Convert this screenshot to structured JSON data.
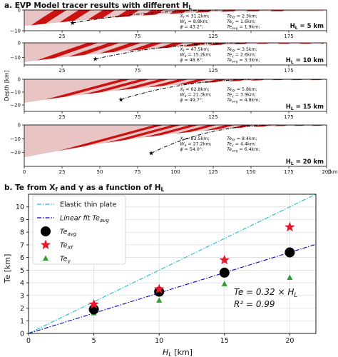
{
  "panel_a": {
    "title_prefix": "a. EVP Model tracer results with different H",
    "title_sub": "L",
    "ylabel": "Depth [km]",
    "colors": {
      "dark": "#cc1111",
      "light": "#e8c4c4",
      "tracer": "#000000"
    },
    "xlim": [
      0,
      200
    ],
    "x_ticks": [
      "0",
      "25",
      "50",
      "75",
      "100",
      "125",
      "150",
      "175",
      "200"
    ],
    "x_unit": "[km]"
  },
  "panel_b": {
    "title_prefix": "b. Te from X",
    "title_mid1": "f",
    "title_mid2": " and γ as a function of H",
    "title_sub": "L",
    "xlabel_main": "H",
    "xlabel_sub": "L",
    "xlabel_unit": " [km]",
    "ylabel": "Te [km]",
    "annotation_line1": "Te = 0.32 × H",
    "annotation_line1_sub": "L",
    "annotation_line2": "R² = 0.99"
  },
  "chart_data": [
    {
      "type": "area",
      "panel": "a",
      "label": "H_L = 5 km",
      "hl": 5,
      "depth_max": 10,
      "y_ticks": [
        "0",
        "−10"
      ],
      "trench_x": 32,
      "front_x": 140,
      "stats_left": [
        [
          "X",
          "f",
          " = 31.2km;"
        ],
        [
          "W",
          "b",
          " = 8.8km;"
        ],
        [
          "ϕ",
          "",
          " = 43.2°;"
        ]
      ],
      "stats_right": [
        [
          "Te",
          "Xf",
          " = 2.3km;"
        ],
        [
          "Te",
          "γ",
          " = 1.6km;"
        ],
        [
          "Te",
          "avg",
          " = 1.9km;"
        ]
      ]
    },
    {
      "type": "area",
      "panel": "a",
      "label": "H_L = 10 km",
      "hl": 10,
      "depth_max": 15,
      "y_ticks": [
        "0",
        "−10"
      ],
      "trench_x": 47,
      "front_x": 150,
      "stats_left": [
        [
          "X",
          "f",
          " = 47.5km;"
        ],
        [
          "W",
          "b",
          " = 15.2km;"
        ],
        [
          "ϕ",
          "",
          " = 48.6°;"
        ]
      ],
      "stats_right": [
        [
          "Te",
          "Xf",
          " = 3.5km;"
        ],
        [
          "Te",
          "γ",
          " = 2.6km;"
        ],
        [
          "Te",
          "avg",
          " = 3.3km;"
        ]
      ]
    },
    {
      "type": "area",
      "panel": "a",
      "label": "H_L = 15 km",
      "hl": 15,
      "depth_max": 25,
      "y_ticks": [
        "0",
        "−10",
        "−20"
      ],
      "trench_x": 64,
      "front_x": 158,
      "stats_left": [
        [
          "X",
          "f",
          " = 62.8km;"
        ],
        [
          "W",
          "b",
          " = 21.3km;"
        ],
        [
          "ϕ",
          "",
          " = 49.7°;"
        ]
      ],
      "stats_right": [
        [
          "Te",
          "Xf",
          " = 5.8km;"
        ],
        [
          "Te",
          "γ",
          " = 3.9km;"
        ],
        [
          "Te",
          "avg",
          " = 4.8km;"
        ]
      ]
    },
    {
      "type": "area",
      "panel": "a",
      "label": "H_L = 20 km",
      "hl": 20,
      "depth_max": 30,
      "y_ticks": [
        "0",
        "−10",
        "−20"
      ],
      "trench_x": 84,
      "front_x": 168,
      "stats_left": [
        [
          "X",
          "f",
          " = 83.5km;"
        ],
        [
          "W",
          "b",
          " = 27.2km;"
        ],
        [
          "ϕ",
          "",
          " = 54.0°;"
        ]
      ],
      "stats_right": [
        [
          "Te",
          "Xf",
          " = 8.4km;"
        ],
        [
          "Te",
          "γ",
          " = 4.4km;"
        ],
        [
          "Te",
          "avg",
          " = 6.4km;"
        ]
      ]
    },
    {
      "type": "scatter",
      "panel": "b",
      "xlim": [
        0,
        22
      ],
      "ylim": [
        0,
        11
      ],
      "x_ticks": [
        0,
        5,
        10,
        15,
        20
      ],
      "y_ticks": [
        0,
        1,
        2,
        3,
        4,
        5,
        6,
        7,
        8,
        9,
        10
      ],
      "lines": [
        {
          "name": "Elastic thin plate",
          "slope": 0.5,
          "color": "#17becf",
          "dash": "dash-dot"
        },
        {
          "name": "Linear fit Te",
          "name_sub": "avg",
          "slope": 0.32,
          "color": "#0000cc",
          "dash": "dash-dot"
        }
      ],
      "series": [
        {
          "name": "Te",
          "name_sub": "avg",
          "marker": "circle",
          "color": "#000000",
          "x": [
            5,
            10,
            15,
            20
          ],
          "y": [
            1.9,
            3.3,
            4.8,
            6.4
          ]
        },
        {
          "name": "Te",
          "name_sub": "Xf",
          "marker": "star",
          "color": "#e8192c",
          "x": [
            5,
            10,
            15,
            20
          ],
          "y": [
            2.3,
            3.5,
            5.8,
            8.4
          ]
        },
        {
          "name": "Te",
          "name_sub": "γ",
          "marker": "triangle",
          "color": "#2ca02c",
          "x": [
            5,
            10,
            15,
            20
          ],
          "y": [
            1.6,
            2.6,
            3.9,
            4.4
          ]
        }
      ]
    }
  ]
}
